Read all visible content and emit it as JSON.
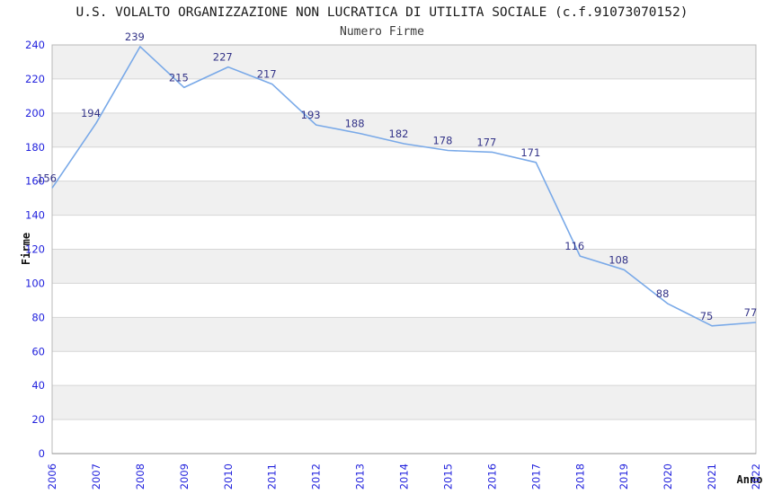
{
  "header": {
    "title": "U.S. VOLALTO ORGANIZZAZIONE NON LUCRATICA DI UTILITA SOCIALE (c.f.91073070152)",
    "subtitle": "Numero Firme"
  },
  "chart_data": {
    "type": "line",
    "title": "U.S. VOLALTO ORGANIZZAZIONE NON LUCRATICA DI UTILITA SOCIALE (c.f.91073070152)",
    "subtitle": "Numero Firme",
    "xlabel": "Anno",
    "ylabel": "Firme",
    "categories": [
      "2006",
      "2007",
      "2008",
      "2009",
      "2010",
      "2011",
      "2012",
      "2013",
      "2014",
      "2015",
      "2016",
      "2017",
      "2018",
      "2019",
      "2020",
      "2021",
      "2022"
    ],
    "series": [
      {
        "name": "Numero Firme",
        "values": [
          156,
          194,
          239,
          215,
          227,
          217,
          193,
          188,
          182,
          178,
          177,
          171,
          116,
          108,
          88,
          75,
          77
        ]
      }
    ],
    "ylim": [
      0,
      240
    ],
    "yticks": [
      0,
      20,
      40,
      60,
      80,
      100,
      120,
      140,
      160,
      180,
      200,
      220,
      240
    ],
    "grid": "horizontal",
    "background_bands": "alternating",
    "legend": "none",
    "point_labels_visible": true,
    "x_tick_rotation_deg": -90,
    "colors": {
      "line": "#79a9e8",
      "axis_tick_labels": "#2222dd",
      "point_labels": "#333388",
      "band": "#f0f0f0",
      "gridline": "#d6d6d6",
      "plot_border": "#b8b8b8",
      "axis_bottom": "#919191",
      "title_text": "#1a1a1a"
    }
  }
}
